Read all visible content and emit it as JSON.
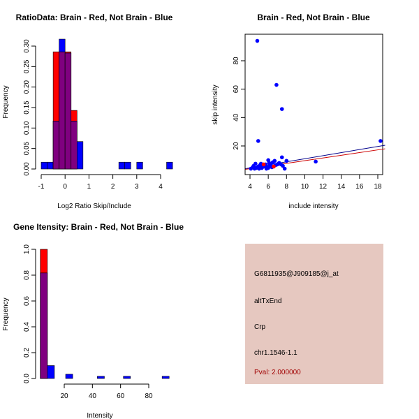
{
  "chart_data": [
    {
      "type": "bar",
      "title": "RatioData: Brain - Red, Not Brain - Blue",
      "xlabel": "Log2 Ratio Skip/Include",
      "ylabel": "Frequency",
      "xlim": [
        -1.2,
        4.5
      ],
      "ylim": [
        0,
        0.32
      ],
      "xticks": [
        "-1",
        "0",
        "1",
        "2",
        "3",
        "4"
      ],
      "xtick_values": [
        -1,
        0,
        1,
        2,
        3,
        4
      ],
      "yticks": [
        "0.00",
        "0.05",
        "0.10",
        "0.15",
        "0.20",
        "0.25",
        "0.30"
      ],
      "ytick_values": [
        0,
        0.05,
        0.1,
        0.15,
        0.2,
        0.25,
        0.3
      ],
      "bin_width": 0.25,
      "series": [
        {
          "name": "Not Brain",
          "color": "#0000ff",
          "bins": [
            -1,
            -0.75,
            -0.5,
            -0.25,
            0,
            0.25,
            0.5,
            2.25,
            2.5,
            3,
            4.25
          ],
          "values": [
            0.0167,
            0.0167,
            0.117,
            0.317,
            0.283,
            0.117,
            0.067,
            0.0167,
            0.0167,
            0.0167,
            0.0167
          ]
        },
        {
          "name": "Brain",
          "color": "#ff0000",
          "bins": [
            -0.5,
            -0.25,
            0,
            0.25
          ],
          "values": [
            0.286,
            0.286,
            0.286,
            0.143
          ]
        }
      ],
      "overlap_color": "#7f007f"
    },
    {
      "type": "scatter",
      "title": "Brain - Red, Not Brain - Blue",
      "xlabel": "include intensity",
      "ylabel": "skip intensity",
      "xlim": [
        3.5,
        18.8
      ],
      "ylim": [
        0,
        97
      ],
      "xticks": [
        "4",
        "6",
        "8",
        "10",
        "12",
        "14",
        "16",
        "18"
      ],
      "xtick_values": [
        4,
        6,
        8,
        10,
        12,
        14,
        16,
        18
      ],
      "yticks": [
        "20",
        "40",
        "60",
        "80"
      ],
      "ytick_values": [
        20,
        40,
        60,
        80
      ],
      "series": [
        {
          "name": "Not Brain",
          "color": "#0000ff",
          "points": [
            [
              4.8,
              94
            ],
            [
              6.9,
              63
            ],
            [
              7.5,
              46
            ],
            [
              4.9,
              23.5
            ],
            [
              18.3,
              23.5
            ],
            [
              11.2,
              9
            ],
            [
              7.5,
              12
            ],
            [
              8,
              9.5
            ],
            [
              7.8,
              4
            ],
            [
              6,
              10
            ],
            [
              4.1,
              4
            ],
            [
              4.3,
              5
            ],
            [
              4.4,
              6
            ],
            [
              4.6,
              7.5
            ],
            [
              4.7,
              4.5
            ],
            [
              4.9,
              5.5
            ],
            [
              5.1,
              6.5
            ],
            [
              5.2,
              7.5
            ],
            [
              5.3,
              4.5
            ],
            [
              5.5,
              5.5
            ],
            [
              5.6,
              6.5
            ],
            [
              5.8,
              4
            ],
            [
              5.9,
              5
            ],
            [
              6.1,
              8
            ],
            [
              6.2,
              6
            ],
            [
              6.3,
              7.5
            ],
            [
              6.5,
              8.5
            ],
            [
              6.7,
              9.5
            ],
            [
              6.8,
              6.5
            ],
            [
              7.0,
              7
            ],
            [
              7.2,
              8
            ],
            [
              7.4,
              7
            ],
            [
              7.6,
              6
            ],
            [
              5.0,
              4
            ],
            [
              5.7,
              7
            ],
            [
              6.0,
              4.5
            ],
            [
              4.5,
              4
            ],
            [
              5.4,
              6
            ],
            [
              6.4,
              5
            ],
            [
              7.1,
              7.5
            ]
          ]
        },
        {
          "name": "Brain",
          "color": "#ff0000",
          "points": [
            [
              6.6,
              5.5
            ],
            [
              5.5,
              7
            ]
          ]
        }
      ],
      "fit_lines": [
        {
          "name": "Not Brain fit",
          "color": "#00008b",
          "from": [
            3.5,
            4
          ],
          "to": [
            18.8,
            20.5
          ]
        },
        {
          "name": "Brain fit",
          "color": "#cd0000",
          "from": [
            3.5,
            3.5
          ],
          "to": [
            18.8,
            18
          ]
        }
      ]
    },
    {
      "type": "bar",
      "title": "Gene Itensity: Brain - Red, Not Brain - Blue",
      "xlabel": "Intensity",
      "ylabel": "Frequency",
      "xlim": [
        0,
        98
      ],
      "ylim": [
        0,
        1.0
      ],
      "xticks": [
        "20",
        "40",
        "60",
        "80"
      ],
      "xtick_values": [
        20,
        40,
        60,
        80
      ],
      "yticks": [
        "0.0",
        "0.2",
        "0.4",
        "0.6",
        "0.8",
        "1.0"
      ],
      "ytick_values": [
        0,
        0.2,
        0.4,
        0.6,
        0.8,
        1.0
      ],
      "bin_width": 5,
      "series": [
        {
          "name": "Not Brain",
          "color": "#0000ff",
          "bins": [
            3,
            8,
            21,
            43.5,
            62,
            89.5
          ],
          "values": [
            0.817,
            0.1,
            0.033,
            0.017,
            0.017,
            0.017
          ]
        },
        {
          "name": "Brain",
          "color": "#ff0000",
          "bins": [
            3
          ],
          "values": [
            1.0
          ]
        }
      ],
      "overlap_color": "#7f007f"
    }
  ],
  "info_panel": {
    "background": "#e6c8c0",
    "probe_id": "G6811935@J909185@j_at",
    "event_type": "altTxEnd",
    "gene": "Crp",
    "location": "chr1.1546-1.1",
    "pval": "Pval: 2.000000",
    "pval_color": "#a00000"
  }
}
